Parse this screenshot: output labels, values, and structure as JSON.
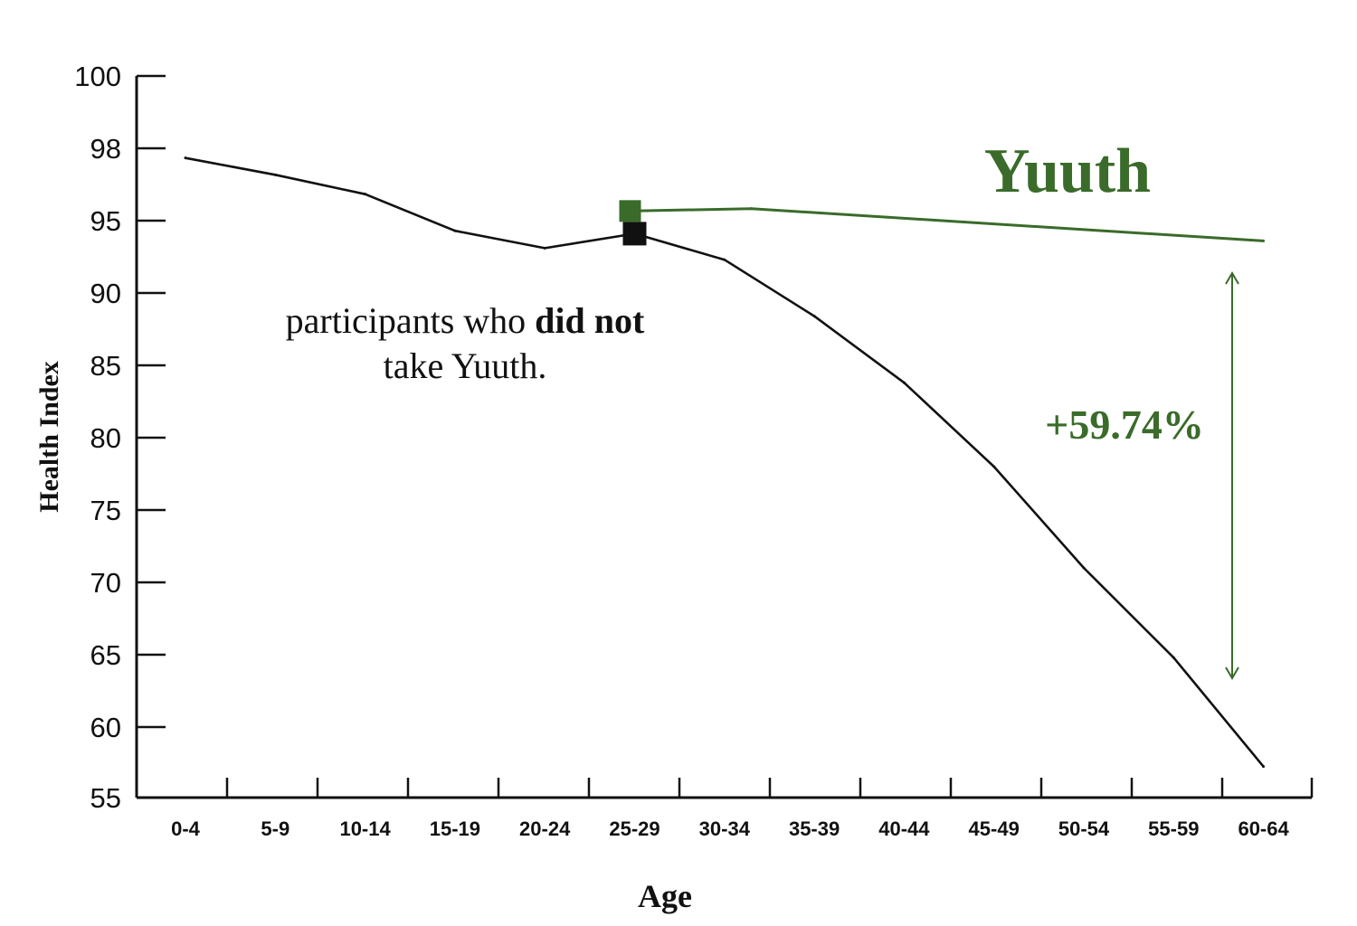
{
  "chart_data": {
    "type": "line",
    "xlabel": "Age",
    "ylabel": "Health Index",
    "categories": [
      "0-4",
      "5-9",
      "10-14",
      "15-19",
      "20-24",
      "25-29",
      "30-34",
      "35-39",
      "40-44",
      "45-49",
      "50-54",
      "55-59",
      "60-64"
    ],
    "y_ticks": [
      "100",
      "98",
      "95",
      "90",
      "85",
      "80",
      "75",
      "70",
      "65",
      "60",
      "55"
    ],
    "series": [
      {
        "name": "",
        "color": "#111111",
        "x": [
          0,
          1,
          2,
          3,
          4,
          5,
          6,
          7,
          8,
          9,
          10,
          11,
          12
        ],
        "values": [
          97.6,
          96.9,
          96.1,
          94.3,
          93.1,
          94.1,
          92.3,
          88.4,
          83.8,
          78.0,
          71.0,
          64.8,
          57.2
        ]
      },
      {
        "name": "Yuuth",
        "color": "#3a6b2a",
        "x": [
          5,
          6.3,
          12
        ],
        "values": [
          95.4,
          95.5,
          93.6
        ]
      }
    ],
    "markers": [
      {
        "series": 1,
        "index": 0
      },
      {
        "series": 0,
        "index": 5
      }
    ],
    "annotations": {
      "brand_label": "Yuuth",
      "group_label_prefix": "participants who ",
      "group_label_bold": "did not",
      "group_label_suffix": "take Yuuth.",
      "difference_label": "+59.74%"
    },
    "grid": false,
    "accent_color": "#3a6b2a"
  }
}
